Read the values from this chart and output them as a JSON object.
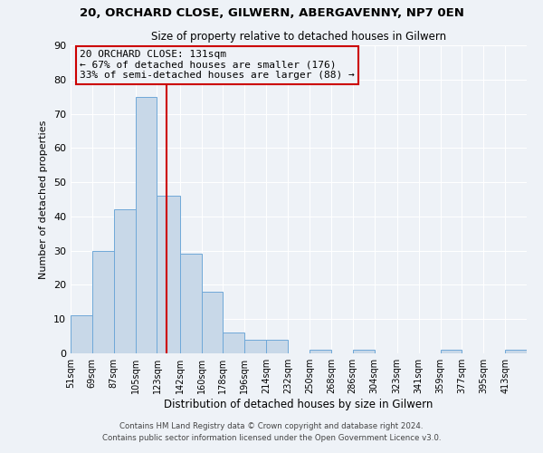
{
  "title1": "20, ORCHARD CLOSE, GILWERN, ABERGAVENNY, NP7 0EN",
  "title2": "Size of property relative to detached houses in Gilwern",
  "xlabel": "Distribution of detached houses by size in Gilwern",
  "ylabel": "Number of detached properties",
  "bin_labels": [
    "51sqm",
    "69sqm",
    "87sqm",
    "105sqm",
    "123sqm",
    "142sqm",
    "160sqm",
    "178sqm",
    "196sqm",
    "214sqm",
    "232sqm",
    "250sqm",
    "268sqm",
    "286sqm",
    "304sqm",
    "323sqm",
    "341sqm",
    "359sqm",
    "377sqm",
    "395sqm",
    "413sqm"
  ],
  "bin_edges": [
    51,
    69,
    87,
    105,
    123,
    142,
    160,
    178,
    196,
    214,
    232,
    250,
    268,
    286,
    304,
    323,
    341,
    359,
    377,
    395,
    413
  ],
  "bar_heights": [
    11,
    30,
    42,
    75,
    46,
    29,
    18,
    6,
    4,
    4,
    0,
    1,
    0,
    1,
    0,
    0,
    0,
    1,
    0,
    0,
    1
  ],
  "bar_color": "#c8d8e8",
  "bar_edge_color": "#6fa8d8",
  "property_size": 131,
  "vline_color": "#cc0000",
  "annotation_line1": "20 ORCHARD CLOSE: 131sqm",
  "annotation_line2": "← 67% of detached houses are smaller (176)",
  "annotation_line3": "33% of semi-detached houses are larger (88) →",
  "annotation_box_color": "#cc0000",
  "ylim": [
    0,
    90
  ],
  "yticks": [
    0,
    10,
    20,
    30,
    40,
    50,
    60,
    70,
    80,
    90
  ],
  "footer1": "Contains HM Land Registry data © Crown copyright and database right 2024.",
  "footer2": "Contains public sector information licensed under the Open Government Licence v3.0.",
  "bg_color": "#eef2f7",
  "grid_color": "#ffffff"
}
